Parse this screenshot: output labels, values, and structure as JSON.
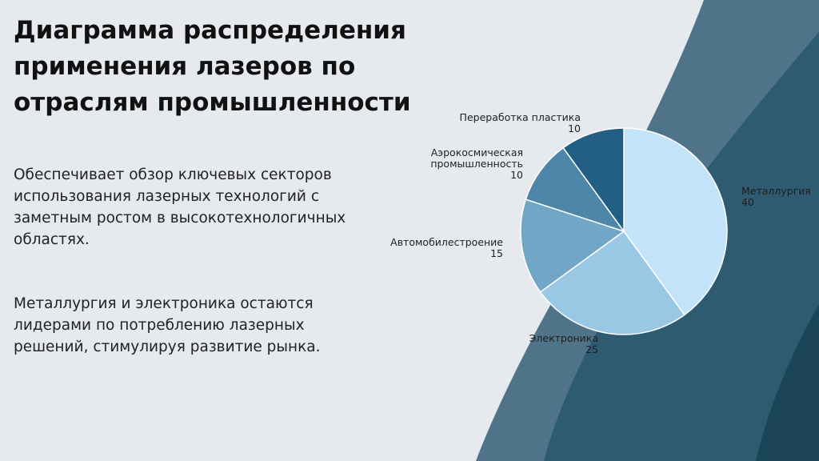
{
  "slide": {
    "title_lines": [
      "Диаграмма распределения",
      "применения лазеров по",
      "отраслям промышленности"
    ],
    "paragraph1_lines": [
      "Обеспечивает обзор ключевых секторов",
      "использования лазерных технологий с",
      "заметным ростом в высокотехнологичных",
      "областях."
    ],
    "paragraph2_lines": [
      "Металлургия и электроника остаются",
      "лидерами по потреблению лазерных",
      "решений, стимулируя развитие рынка."
    ]
  },
  "colors": {
    "background": "#e6eaee",
    "wave_light": "#4f7489",
    "wave_dark": "#2e5b71",
    "wave_darkest": "#1d4558"
  },
  "chart_data": {
    "type": "pie",
    "title": "",
    "start_angle_deg": 0,
    "direction": "clockwise",
    "slices": [
      {
        "label_lines": [
          "Металлургия"
        ],
        "value": 40,
        "value_label": "40",
        "color": "#c3e3f9"
      },
      {
        "label_lines": [
          "Электроника"
        ],
        "value": 25,
        "value_label": "25",
        "color": "#9ac7e3"
      },
      {
        "label_lines": [
          "Автомобилестроение"
        ],
        "value": 15,
        "value_label": "15",
        "color": "#72a6c7"
      },
      {
        "label_lines": [
          "Аэрокосмическая",
          "промышленность"
        ],
        "value": 10,
        "value_label": "10",
        "color": "#4e86a9"
      },
      {
        "label_lines": [
          "Переработка пластика"
        ],
        "value": 10,
        "value_label": "10",
        "color": "#235f84"
      }
    ]
  }
}
